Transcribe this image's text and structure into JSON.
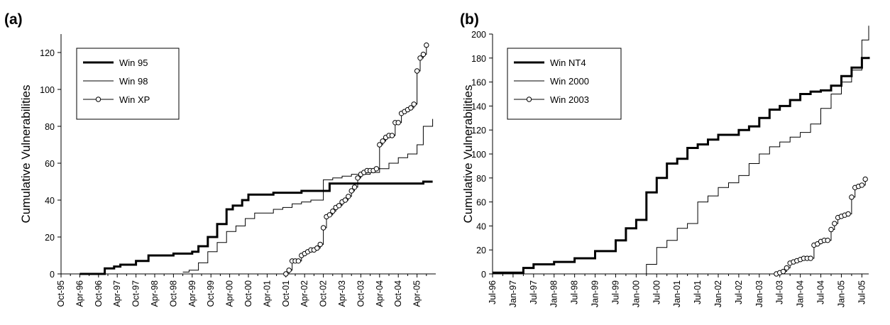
{
  "chart_data": [
    {
      "type": "line",
      "panel_label": "(a)",
      "title": "",
      "xlabel": "",
      "ylabel": "Cumulative Vulnerabilities",
      "ylim": [
        0,
        130
      ],
      "yticks": [
        0,
        20,
        40,
        60,
        80,
        100,
        120
      ],
      "x_tick_labels": [
        "Oct-95",
        "Apr-96",
        "Oct-96",
        "Apr-97",
        "Oct-97",
        "Apr-98",
        "Oct-98",
        "Apr-99",
        "Oct-99",
        "Apr-00",
        "Oct-00",
        "Apr-01",
        "Oct-01",
        "Apr-02",
        "Oct-02",
        "Apr-03",
        "Oct-03",
        "Apr-04",
        "Oct-04",
        "Apr-05"
      ],
      "xlim": [
        "1995-10",
        "2005-10"
      ],
      "grid": false,
      "legend_position": "top-left",
      "series": [
        {
          "name": "Win 95",
          "style": "thick",
          "x": [
            "1996-04",
            "1996-11",
            "1996-12",
            "1997-03",
            "1997-05",
            "1997-08",
            "1997-10",
            "1998-02",
            "1998-04",
            "1998-06",
            "1998-10",
            "1999-01",
            "1999-04",
            "1999-06",
            "1999-09",
            "1999-12",
            "2000-03",
            "2000-05",
            "2000-08",
            "2000-10",
            "2000-12",
            "2001-03",
            "2001-06",
            "2001-09",
            "2001-12",
            "2002-03",
            "2002-06",
            "2002-10",
            "2002-12",
            "2003-06",
            "2004-06",
            "2005-06",
            "2005-09"
          ],
          "y": [
            0,
            0,
            3,
            4,
            5,
            5,
            7,
            10,
            10,
            10,
            11,
            11,
            12,
            15,
            20,
            27,
            35,
            37,
            40,
            43,
            43,
            43,
            44,
            44,
            44,
            45,
            45,
            45,
            49,
            49,
            49,
            50,
            50
          ]
        },
        {
          "name": "Win 98",
          "style": "thin",
          "x": [
            "1999-01",
            "1999-03",
            "1999-06",
            "1999-09",
            "1999-12",
            "2000-03",
            "2000-06",
            "2000-09",
            "2000-12",
            "2001-03",
            "2001-06",
            "2001-09",
            "2001-12",
            "2002-03",
            "2002-06",
            "2002-09",
            "2002-10",
            "2003-01",
            "2003-04",
            "2003-07",
            "2003-10",
            "2004-01",
            "2004-04",
            "2004-07",
            "2004-10",
            "2005-01",
            "2005-04",
            "2005-06",
            "2005-09"
          ],
          "y": [
            1,
            2,
            6,
            12,
            17,
            23,
            26,
            30,
            33,
            33,
            35,
            36,
            38,
            39,
            40,
            40,
            51,
            52,
            53,
            54,
            54,
            55,
            57,
            60,
            63,
            65,
            70,
            80,
            84
          ]
        },
        {
          "name": "Win XP",
          "style": "thin-circles",
          "x": [
            "2001-10",
            "2001-11",
            "2001-12",
            "2002-01",
            "2002-02",
            "2002-03",
            "2002-04",
            "2002-05",
            "2002-06",
            "2002-07",
            "2002-08",
            "2002-09",
            "2002-10",
            "2002-11",
            "2002-12",
            "2003-01",
            "2003-02",
            "2003-03",
            "2003-04",
            "2003-05",
            "2003-06",
            "2003-07",
            "2003-08",
            "2003-09",
            "2003-10",
            "2003-11",
            "2003-12",
            "2004-01",
            "2004-02",
            "2004-03",
            "2004-04",
            "2004-05",
            "2004-06",
            "2004-07",
            "2004-08",
            "2004-09",
            "2004-10",
            "2004-11",
            "2004-12",
            "2005-01",
            "2005-02",
            "2005-03",
            "2005-04",
            "2005-05",
            "2005-06",
            "2005-07"
          ],
          "y": [
            0,
            2,
            7,
            7,
            7,
            10,
            11,
            12,
            13,
            13,
            14,
            16,
            25,
            31,
            32,
            34,
            36,
            37,
            39,
            40,
            42,
            45,
            47,
            52,
            54,
            55,
            56,
            56,
            56,
            57,
            70,
            72,
            74,
            75,
            75,
            82,
            82,
            87,
            88,
            89,
            90,
            92,
            110,
            117,
            119,
            124
          ]
        }
      ]
    },
    {
      "type": "line",
      "panel_label": "(b)",
      "title": "",
      "xlabel": "",
      "ylabel": "Cumulative Vulnerabilities",
      "ylim": [
        0,
        200
      ],
      "yticks": [
        0,
        20,
        40,
        60,
        80,
        100,
        120,
        140,
        160,
        180,
        200
      ],
      "x_tick_labels": [
        "Jul-96",
        "Jan-97",
        "Jul-97",
        "Jan-98",
        "Jul-98",
        "Jan-99",
        "Jul-99",
        "Jan-00",
        "Jul-00",
        "Jan-01",
        "Jul-01",
        "Jan-02",
        "Jul-02",
        "Jan-03",
        "Jul-03",
        "Jan-04",
        "Jul-04",
        "Jan-05",
        "Jul-05"
      ],
      "xlim": [
        "1996-07",
        "2005-09"
      ],
      "grid": false,
      "legend_position": "top-left",
      "series": [
        {
          "name": "Win NT4",
          "style": "thick",
          "x": [
            "1996-07",
            "1997-01",
            "1997-04",
            "1997-07",
            "1998-01",
            "1998-07",
            "1999-01",
            "1999-07",
            "1999-10",
            "2000-01",
            "2000-04",
            "2000-07",
            "2000-10",
            "2001-01",
            "2001-04",
            "2001-07",
            "2001-10",
            "2002-01",
            "2002-07",
            "2002-10",
            "2003-01",
            "2003-04",
            "2003-07",
            "2003-10",
            "2004-01",
            "2004-04",
            "2004-07",
            "2004-10",
            "2005-01",
            "2005-04",
            "2005-07",
            "2005-09"
          ],
          "y": [
            1,
            1,
            5,
            8,
            10,
            13,
            19,
            28,
            38,
            45,
            68,
            80,
            92,
            96,
            105,
            108,
            112,
            116,
            120,
            123,
            130,
            137,
            140,
            145,
            150,
            152,
            153,
            157,
            165,
            172,
            180,
            181
          ]
        },
        {
          "name": "Win 2000",
          "style": "thin",
          "x": [
            "2000-01",
            "2000-04",
            "2000-07",
            "2000-10",
            "2001-01",
            "2001-04",
            "2001-07",
            "2001-10",
            "2002-01",
            "2002-04",
            "2002-07",
            "2002-10",
            "2003-01",
            "2003-04",
            "2003-07",
            "2003-10",
            "2004-01",
            "2004-04",
            "2004-07",
            "2004-10",
            "2005-01",
            "2005-04",
            "2005-07",
            "2005-09"
          ],
          "y": [
            0,
            8,
            22,
            28,
            38,
            42,
            60,
            65,
            72,
            76,
            82,
            92,
            100,
            106,
            110,
            114,
            118,
            125,
            138,
            150,
            160,
            170,
            195,
            207
          ]
        },
        {
          "name": "Win 2003",
          "style": "thin-circles",
          "x": [
            "2003-06",
            "2003-07",
            "2003-08",
            "2003-09",
            "2003-10",
            "2003-11",
            "2003-12",
            "2004-01",
            "2004-02",
            "2004-03",
            "2004-04",
            "2004-05",
            "2004-06",
            "2004-07",
            "2004-08",
            "2004-09",
            "2004-10",
            "2004-11",
            "2004-12",
            "2005-01",
            "2005-02",
            "2005-03",
            "2005-04",
            "2005-05",
            "2005-06",
            "2005-07",
            "2005-08"
          ],
          "y": [
            0,
            1,
            2,
            5,
            9,
            10,
            11,
            12,
            13,
            13,
            13,
            24,
            25,
            27,
            28,
            28,
            37,
            42,
            47,
            48,
            49,
            50,
            64,
            72,
            73,
            74,
            79
          ]
        }
      ]
    }
  ]
}
